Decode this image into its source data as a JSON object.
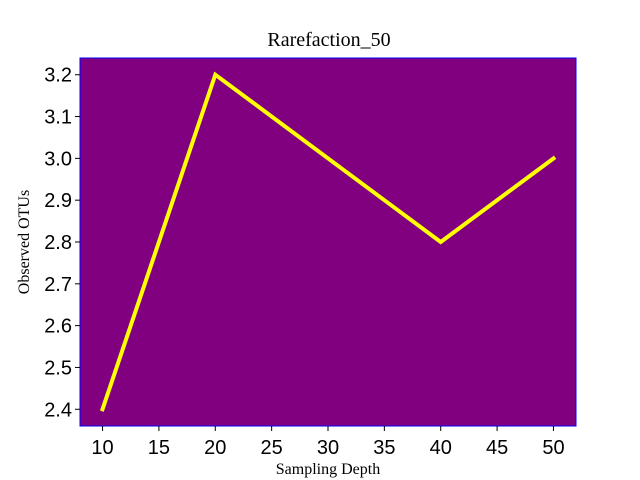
{
  "chart_data": {
    "type": "line",
    "title": "Rarefaction_50",
    "xlabel": "Sampling Depth",
    "ylabel": "Observed OTUs",
    "x": [
      10,
      20,
      40,
      50
    ],
    "series": [
      {
        "values": [
          2.4,
          3.2,
          2.8,
          3.0
        ],
        "color": "#ffff00"
      }
    ],
    "xticks": [
      10,
      15,
      20,
      25,
      30,
      35,
      40,
      45,
      50
    ],
    "xtick_labels": [
      "10",
      "15",
      "20",
      "25",
      "30",
      "35",
      "40",
      "45",
      "50"
    ],
    "yticks": [
      2.4,
      2.5,
      2.6,
      2.7,
      2.8,
      2.9,
      3.0,
      3.1,
      3.2
    ],
    "ytick_labels": [
      "2.4",
      "2.5",
      "2.6",
      "2.7",
      "2.8",
      "2.9",
      "3.0",
      "3.1",
      "3.2"
    ],
    "xlim": [
      8,
      52
    ],
    "ylim": [
      2.36,
      3.24
    ],
    "grid": false,
    "plot_background": "#800080",
    "axes_edge_color": "#0000ff"
  }
}
